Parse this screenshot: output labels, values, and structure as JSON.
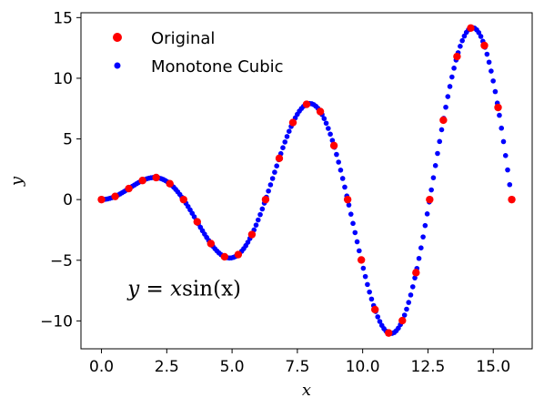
{
  "chart_data": {
    "type": "scatter",
    "title": "",
    "xlabel": "x",
    "ylabel": "y",
    "xlim": [
      -0.785,
      16.49
    ],
    "ylim": [
      -12.3,
      15.4
    ],
    "xticks": [
      0.0,
      2.5,
      5.0,
      7.5,
      10.0,
      12.5,
      15.0
    ],
    "xtick_labels": [
      "0.0",
      "2.5",
      "5.0",
      "7.5",
      "10.0",
      "12.5",
      "15.0"
    ],
    "yticks": [
      -10,
      -5,
      0,
      5,
      10,
      15
    ],
    "ytick_labels": [
      "−10",
      "−5",
      "0",
      "5",
      "10",
      "15"
    ],
    "grid": false,
    "legend_position": "top-left",
    "annotation": {
      "prefix": "y = x",
      "func": "sin",
      "suffix": "(x)",
      "x": 1.0,
      "y": -7.9
    },
    "series": [
      {
        "name": "Monotone Cubic",
        "color": "#0000ff",
        "marker": "dot-small",
        "x_start": 0.0,
        "x_end": 15.708,
        "n_points": 200
      },
      {
        "name": "Original",
        "color": "#ff0000",
        "marker": "dot-large",
        "x": [
          0.0,
          0.5236,
          1.0472,
          1.5708,
          2.0944,
          2.618,
          3.1416,
          3.6652,
          4.1888,
          4.7124,
          5.236,
          5.7596,
          6.2832,
          6.8068,
          7.3304,
          7.854,
          8.3776,
          8.9012,
          9.4248,
          9.9484,
          10.472,
          10.9956,
          11.5192,
          12.0428,
          12.5664,
          13.09,
          13.6136,
          14.1372,
          14.6608,
          15.1844,
          15.708
        ],
        "y": [
          0.0,
          0.262,
          0.907,
          1.571,
          1.814,
          1.309,
          0.0,
          -1.833,
          -3.628,
          -4.712,
          -4.534,
          -2.88,
          0.0,
          3.403,
          6.348,
          7.854,
          7.255,
          4.451,
          0.0,
          -4.974,
          -9.069,
          -10.996,
          -9.976,
          -6.021,
          0.0,
          6.545,
          11.79,
          14.137,
          12.697,
          7.592,
          0.0
        ]
      }
    ]
  }
}
